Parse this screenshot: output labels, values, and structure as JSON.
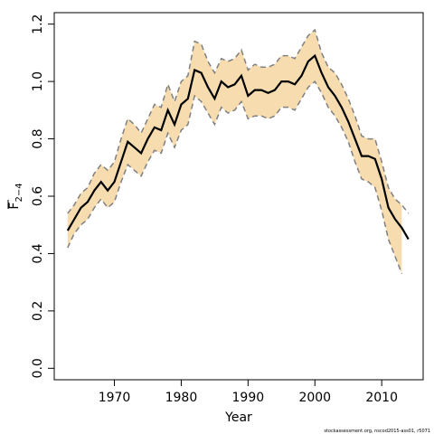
{
  "chart_data": {
    "type": "line",
    "xlabel": "Year",
    "ylabel": {
      "main": "F",
      "sub": "2−4"
    },
    "footnote": "stockassessment.org, nscod2015-ass01, r5071",
    "x": [
      1963,
      1964,
      1965,
      1966,
      1967,
      1968,
      1969,
      1970,
      1971,
      1972,
      1973,
      1974,
      1975,
      1976,
      1977,
      1978,
      1979,
      1980,
      1981,
      1982,
      1983,
      1984,
      1985,
      1986,
      1987,
      1988,
      1989,
      1990,
      1991,
      1992,
      1993,
      1994,
      1995,
      1996,
      1997,
      1998,
      1999,
      2000,
      2001,
      2002,
      2003,
      2004,
      2005,
      2006,
      2007,
      2008,
      2009,
      2010,
      2011,
      2012,
      2013,
      2014
    ],
    "series": [
      {
        "name": "estimate",
        "color": "#000000",
        "values": [
          0.48,
          0.52,
          0.56,
          0.58,
          0.62,
          0.65,
          0.62,
          0.65,
          0.72,
          0.79,
          0.77,
          0.75,
          0.8,
          0.84,
          0.83,
          0.9,
          0.85,
          0.92,
          0.94,
          1.04,
          1.03,
          0.98,
          0.94,
          1.0,
          0.98,
          0.99,
          1.02,
          0.95,
          0.97,
          0.97,
          0.96,
          0.97,
          1.0,
          1.0,
          0.99,
          1.02,
          1.07,
          1.09,
          1.03,
          0.98,
          0.95,
          0.91,
          0.86,
          0.8,
          0.74,
          0.74,
          0.73,
          0.66,
          0.56,
          0.52,
          0.49,
          0.45
        ]
      },
      {
        "name": "upper",
        "color": "#808080",
        "dashed": true,
        "values": [
          0.54,
          0.57,
          0.61,
          0.63,
          0.68,
          0.71,
          0.69,
          0.72,
          0.8,
          0.87,
          0.85,
          0.82,
          0.87,
          0.92,
          0.91,
          0.99,
          0.93,
          1.0,
          1.02,
          1.14,
          1.13,
          1.07,
          1.03,
          1.08,
          1.07,
          1.08,
          1.11,
          1.04,
          1.06,
          1.05,
          1.05,
          1.06,
          1.09,
          1.09,
          1.08,
          1.12,
          1.16,
          1.18,
          1.1,
          1.05,
          1.03,
          0.99,
          0.94,
          0.88,
          0.81,
          0.8,
          0.8,
          0.72,
          0.63,
          0.59,
          0.57,
          0.54
        ]
      },
      {
        "name": "lower",
        "color": "#808080",
        "dashed": true,
        "values": [
          0.42,
          0.47,
          0.5,
          0.52,
          0.56,
          0.59,
          0.56,
          0.58,
          0.65,
          0.71,
          0.69,
          0.67,
          0.72,
          0.76,
          0.75,
          0.82,
          0.77,
          0.83,
          0.85,
          0.95,
          0.93,
          0.89,
          0.85,
          0.91,
          0.89,
          0.9,
          0.93,
          0.87,
          0.88,
          0.88,
          0.87,
          0.88,
          0.91,
          0.91,
          0.9,
          0.94,
          0.98,
          1.0,
          0.96,
          0.91,
          0.88,
          0.84,
          0.79,
          0.72,
          0.66,
          0.65,
          0.63,
          0.55,
          0.45,
          0.39,
          0.33,
          null
        ]
      }
    ],
    "band_color": "#f6dcae",
    "xlim": [
      1961,
      2016.2
    ],
    "ylim": [
      -0.04,
      1.24
    ],
    "xticks": [
      1970,
      1980,
      1990,
      2000,
      2010
    ],
    "yticks": [
      {
        "value": 0,
        "label": "0.0"
      },
      0.2,
      0.4,
      0.6,
      0.8,
      {
        "value": 1,
        "label": "1.0"
      },
      1.2
    ]
  }
}
